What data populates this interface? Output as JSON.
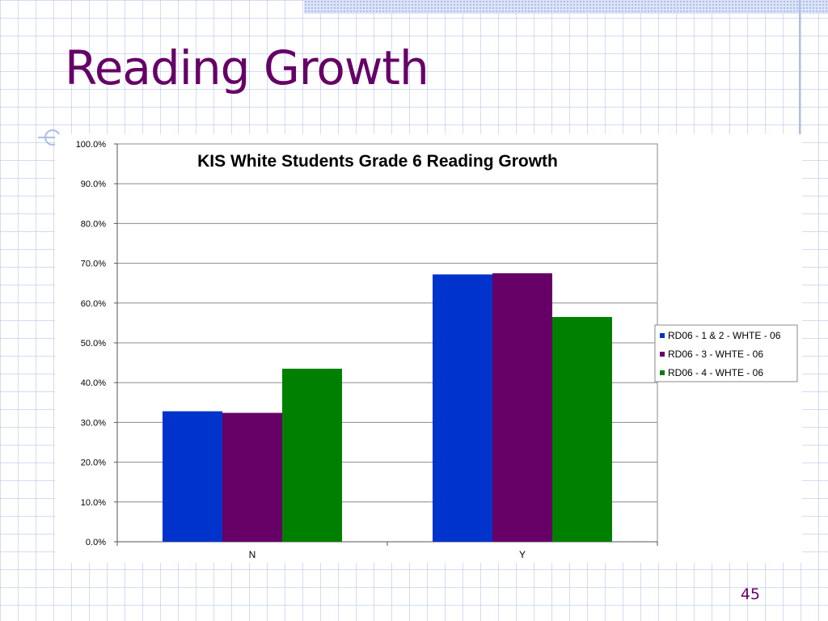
{
  "slide": {
    "title": "Reading Growth",
    "page_number": "45"
  },
  "colors": {
    "title": "#660066",
    "grid_lines": "#aebde8"
  },
  "chart_data": {
    "type": "bar",
    "title": "KIS White Students Grade 6 Reading Growth",
    "categories": [
      "N",
      "Y"
    ],
    "series": [
      {
        "name": "RD06 - 1 & 2 - WHTE - 06",
        "color": "#0033cc",
        "values": [
          32.8,
          67.2
        ]
      },
      {
        "name": "RD06 - 3 - WHTE - 06",
        "color": "#660066",
        "values": [
          32.4,
          67.5
        ]
      },
      {
        "name": "RD06 - 4 - WHTE - 06",
        "color": "#008000",
        "values": [
          43.5,
          56.5
        ]
      }
    ],
    "ylim": [
      0,
      100
    ],
    "yticks": [
      "0.0%",
      "10.0%",
      "20.0%",
      "30.0%",
      "40.0%",
      "50.0%",
      "60.0%",
      "70.0%",
      "80.0%",
      "90.0%",
      "100.0%"
    ],
    "grid": true,
    "legend_position": "right"
  }
}
